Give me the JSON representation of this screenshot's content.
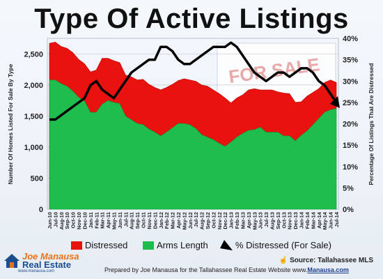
{
  "title": "Type Of Active Listings",
  "chart_data": {
    "type": "area",
    "x": [
      "Jun-10",
      "Jul-10",
      "Aug-10",
      "Sep-10",
      "Oct-10",
      "Nov-10",
      "Dec-10",
      "Jan-11",
      "Feb-11",
      "Mar-11",
      "Apr-11",
      "May-11",
      "Jun-11",
      "Jul-11",
      "Aug-11",
      "Sep-11",
      "Oct-11",
      "Nov-11",
      "Dec-11",
      "Jan-12",
      "Feb-12",
      "Mar-12",
      "Apr-12",
      "May-12",
      "Jun-12",
      "Jul-12",
      "Aug-12",
      "Sep-12",
      "Oct-12",
      "Nov-12",
      "Dec-12",
      "Jan-13",
      "Feb-13",
      "Mar-13",
      "Apr-13",
      "May-13",
      "Jun-13",
      "Jul-13",
      "Aug-13",
      "Sep-13",
      "Oct-13",
      "Nov-13",
      "Dec-13",
      "Jan-14",
      "Feb-14",
      "Mar-14",
      "Apr-14",
      "May-14",
      "Jun-14",
      "Jul-14"
    ],
    "series": [
      {
        "name": "Arms Length",
        "axis": "left",
        "color": "#1fbd4d",
        "values": [
          2080,
          2080,
          2020,
          1980,
          1900,
          1800,
          1740,
          1560,
          1560,
          1690,
          1750,
          1720,
          1700,
          1500,
          1440,
          1380,
          1360,
          1290,
          1240,
          1180,
          1240,
          1310,
          1380,
          1380,
          1360,
          1300,
          1200,
          1160,
          1120,
          1060,
          1010,
          1080,
          1160,
          1220,
          1270,
          1280,
          1320,
          1240,
          1240,
          1240,
          1180,
          1180,
          1100,
          1190,
          1260,
          1360,
          1460,
          1560,
          1600,
          1620
        ]
      },
      {
        "name": "Distressed",
        "axis": "left",
        "color": "#e8120f",
        "values": [
          590,
          610,
          600,
          610,
          620,
          610,
          600,
          650,
          680,
          740,
          680,
          670,
          660,
          660,
          690,
          700,
          730,
          720,
          720,
          740,
          720,
          700,
          690,
          720,
          720,
          760,
          800,
          820,
          800,
          800,
          780,
          630,
          630,
          620,
          650,
          660,
          600,
          680,
          680,
          650,
          690,
          680,
          620,
          540,
          560,
          520,
          480,
          480,
          480,
          420
        ]
      },
      {
        "name": "% Distressed (For Sale)",
        "axis": "right",
        "type": "line",
        "color": "#000000",
        "values": [
          21,
          21,
          22,
          23,
          24,
          25,
          26,
          29,
          30,
          28,
          27,
          26,
          28,
          30,
          32,
          33,
          34,
          35,
          35,
          38,
          38,
          37,
          35,
          34,
          34,
          35,
          36,
          37,
          38,
          38,
          38,
          39,
          38,
          36,
          34,
          32,
          31,
          30,
          31,
          32,
          32,
          31,
          32,
          33,
          33,
          32,
          30,
          29,
          27,
          25
        ]
      }
    ],
    "xlabel": "",
    "ylabel_left": "Number Of Homes Listed For Sale By Type",
    "ylabel_right": "Percentage Of Listings That Are Distressed",
    "ylim_left": [
      0,
      2750
    ],
    "yticks_left": [
      "0",
      "500",
      "1,000",
      "1,500",
      "2,000",
      "2,500"
    ],
    "ylim_right": [
      0,
      40
    ],
    "yticks_right": [
      "0%",
      "5%",
      "10%",
      "15%",
      "20%",
      "25%",
      "30%",
      "35%",
      "40%"
    ],
    "legend": [
      "Distressed",
      "Arms Length",
      "% Distressed (For Sale)"
    ],
    "legend_position": "bottom",
    "watermark": "FOR SALE"
  },
  "footer": {
    "source": "Source: Tallahassee MLS",
    "prepared_text": "Prepared by Joe Manausa for the Tallahassee Real Estate Website www.",
    "prepared_link": "Manausa.com"
  },
  "logo": {
    "line1": "Joe Manausa",
    "line2": "Real Estate",
    "line3": "www.manausa.com"
  }
}
